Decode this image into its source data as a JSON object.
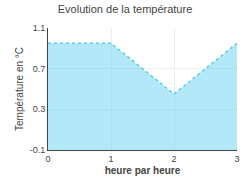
{
  "chart_data": {
    "type": "area",
    "title": "Evolution de la température",
    "xlabel": "heure par heure",
    "ylabel": "Température en °C",
    "x": [
      0,
      1,
      2,
      3
    ],
    "values": [
      0.95,
      0.95,
      0.45,
      0.95
    ],
    "color": "#55CCEE",
    "line_style": "dotted",
    "xlim": [
      0,
      3
    ],
    "ylim": [
      -0.1,
      1.1
    ],
    "xticks": [
      0,
      1,
      2,
      3
    ],
    "yticks": [
      -0.1,
      0.3,
      0.7,
      1.1
    ],
    "grid": true
  }
}
